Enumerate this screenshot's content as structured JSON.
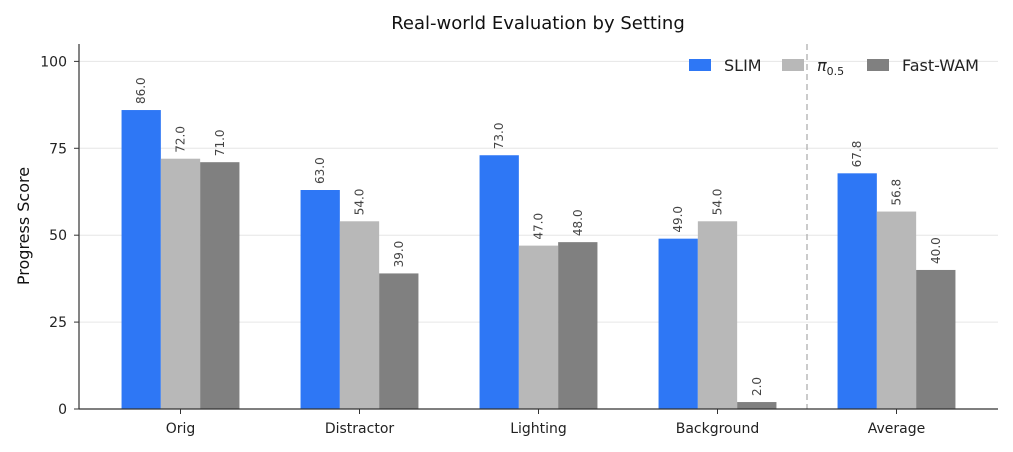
{
  "chart_data": {
    "type": "bar",
    "title": "Real-world Evaluation by Setting",
    "ylabel": "Progress Score",
    "xlabel": "",
    "ylim": [
      0,
      105
    ],
    "yticks": [
      0,
      25,
      50,
      75,
      100
    ],
    "grid": "horizontal",
    "legend_position": "top-right",
    "categories": [
      "Orig",
      "Distractor",
      "Lighting",
      "Background",
      "Average"
    ],
    "series": [
      {
        "name": "SLIM",
        "color": "#2e77f5",
        "values": [
          86.0,
          63.0,
          73.0,
          49.0,
          67.8
        ],
        "labels": [
          "86.0",
          "63.0",
          "73.0",
          "49.0",
          "67.8"
        ]
      },
      {
        "name_base": "π",
        "name_sub": "0.5",
        "color": "#b8b8b8",
        "values": [
          72.0,
          54.0,
          47.0,
          54.0,
          56.8
        ],
        "labels": [
          "72.0",
          "54.0",
          "47.0",
          "54.0",
          "56.8"
        ]
      },
      {
        "name": "Fast-WAM",
        "color": "#808080",
        "values": [
          71.0,
          39.0,
          48.0,
          2.0,
          40.0
        ],
        "labels": [
          "71.0",
          "39.0",
          "48.0",
          "2.0",
          "40.0"
        ]
      }
    ],
    "separator_before_category": "Average"
  }
}
